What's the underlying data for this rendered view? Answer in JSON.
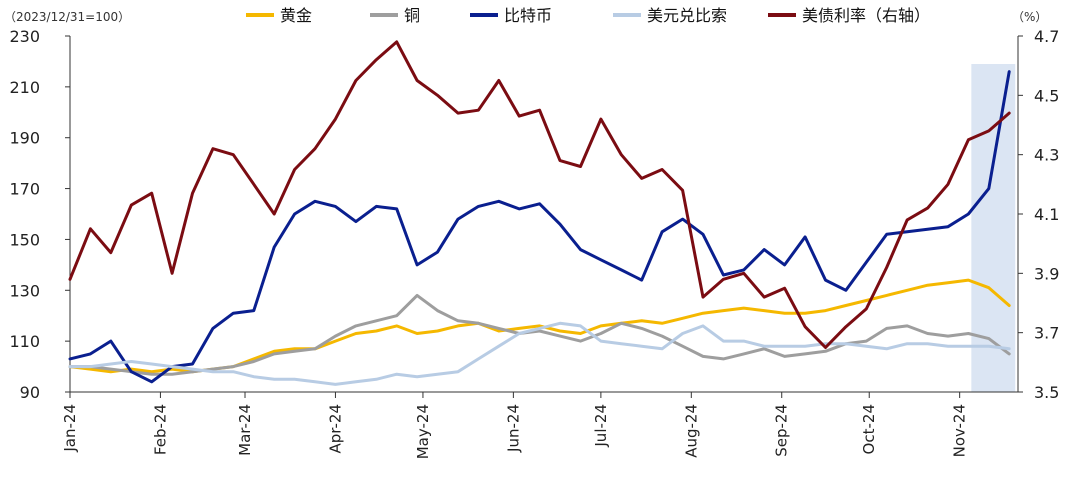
{
  "chart_data": {
    "type": "line",
    "left_axis_note": "（2023/12/31=100）",
    "right_axis_note": "（%）",
    "x": [
      "2024-01-01",
      "2024-01-08",
      "2024-01-15",
      "2024-01-22",
      "2024-01-29",
      "2024-02-05",
      "2024-02-12",
      "2024-02-19",
      "2024-02-26",
      "2024-03-04",
      "2024-03-11",
      "2024-03-18",
      "2024-03-25",
      "2024-04-01",
      "2024-04-08",
      "2024-04-15",
      "2024-04-22",
      "2024-04-29",
      "2024-05-06",
      "2024-05-13",
      "2024-05-20",
      "2024-05-27",
      "2024-06-03",
      "2024-06-10",
      "2024-06-17",
      "2024-06-24",
      "2024-07-01",
      "2024-07-08",
      "2024-07-15",
      "2024-07-22",
      "2024-07-29",
      "2024-08-05",
      "2024-08-12",
      "2024-08-19",
      "2024-08-26",
      "2024-09-02",
      "2024-09-09",
      "2024-09-16",
      "2024-09-23",
      "2024-09-30",
      "2024-10-07",
      "2024-10-14",
      "2024-10-21",
      "2024-10-28",
      "2024-11-04",
      "2024-11-11",
      "2024-11-18"
    ],
    "x_tick_labels": [
      "Jan-24",
      "Feb-24",
      "Mar-24",
      "Apr-24",
      "May-24",
      "Jun-24",
      "Jul-24",
      "Aug-24",
      "Sep-24",
      "Oct-24",
      "Nov-24"
    ],
    "x_tick_dates": [
      "2024-01-01",
      "2024-02-01",
      "2024-03-01",
      "2024-04-01",
      "2024-05-01",
      "2024-06-01",
      "2024-07-01",
      "2024-08-01",
      "2024-09-01",
      "2024-10-01",
      "2024-11-01"
    ],
    "y_left": {
      "min": 90,
      "max": 230,
      "ticks": [
        90,
        110,
        130,
        150,
        170,
        190,
        210,
        230
      ]
    },
    "y_right": {
      "min": 3.5,
      "max": 4.7,
      "ticks": [
        3.5,
        3.7,
        3.9,
        4.1,
        4.3,
        4.5,
        4.7
      ],
      "tick_labels": [
        "3.5",
        "3.7",
        "3.9",
        "4.1",
        "4.3",
        "4.5",
        "4.7"
      ]
    },
    "highlight": {
      "start": "2024-11-05",
      "end": "2024-11-18",
      "color": "#dbe5f3"
    },
    "legend_position": "top",
    "grid": false,
    "series": [
      {
        "name": "黄金",
        "axis": "left",
        "color": "#f5b800",
        "values": [
          100,
          99,
          98,
          99,
          98,
          99,
          98,
          99,
          100,
          103,
          106,
          107,
          107,
          110,
          113,
          114,
          116,
          113,
          114,
          116,
          117,
          114,
          115,
          116,
          114,
          113,
          116,
          117,
          118,
          117,
          119,
          121,
          122,
          123,
          122,
          121,
          121,
          122,
          124,
          126,
          128,
          130,
          132,
          133,
          134,
          131,
          124
        ]
      },
      {
        "name": "铜",
        "axis": "left",
        "color": "#9e9e9e",
        "values": [
          100,
          100,
          99,
          98,
          97,
          97,
          98,
          99,
          100,
          102,
          105,
          106,
          107,
          112,
          116,
          118,
          120,
          128,
          122,
          118,
          117,
          115,
          113,
          114,
          112,
          110,
          113,
          117,
          115,
          112,
          108,
          104,
          103,
          105,
          107,
          104,
          105,
          106,
          109,
          110,
          115,
          116,
          113,
          112,
          113,
          111,
          105
        ]
      },
      {
        "name": "比特币",
        "axis": "left",
        "color": "#0a1f8f",
        "values": [
          103,
          105,
          110,
          98,
          94,
          100,
          101,
          115,
          121,
          122,
          147,
          160,
          165,
          163,
          157,
          163,
          162,
          140,
          145,
          158,
          163,
          165,
          162,
          164,
          156,
          146,
          142,
          138,
          134,
          153,
          158,
          152,
          136,
          138,
          146,
          140,
          151,
          134,
          130,
          141,
          152,
          153,
          154,
          155,
          160,
          170,
          216
        ]
      },
      {
        "name": "美元兑比索",
        "axis": "left",
        "color": "#b8cce4",
        "values": [
          100,
          100,
          101,
          102,
          101,
          100,
          99,
          98,
          98,
          96,
          95,
          95,
          94,
          93,
          94,
          95,
          97,
          96,
          97,
          98,
          103,
          108,
          113,
          115,
          117,
          116,
          110,
          109,
          108,
          107,
          113,
          116,
          110,
          110,
          108,
          108,
          108,
          109,
          109,
          108,
          107,
          109,
          109,
          108,
          108,
          108,
          107
        ]
      },
      {
        "name": "美债利率（右轴）",
        "axis": "right",
        "color": "#7b0c12",
        "values": [
          3.88,
          4.05,
          3.97,
          4.13,
          4.17,
          3.9,
          4.17,
          4.32,
          4.3,
          4.2,
          4.1,
          4.25,
          4.32,
          4.42,
          4.55,
          4.62,
          4.68,
          4.55,
          4.5,
          4.44,
          4.45,
          4.55,
          4.43,
          4.45,
          4.28,
          4.26,
          4.42,
          4.3,
          4.22,
          4.25,
          4.18,
          3.82,
          3.88,
          3.9,
          3.82,
          3.85,
          3.72,
          3.65,
          3.72,
          3.78,
          3.92,
          4.08,
          4.12,
          4.2,
          4.35,
          4.38,
          4.44
        ]
      }
    ]
  }
}
